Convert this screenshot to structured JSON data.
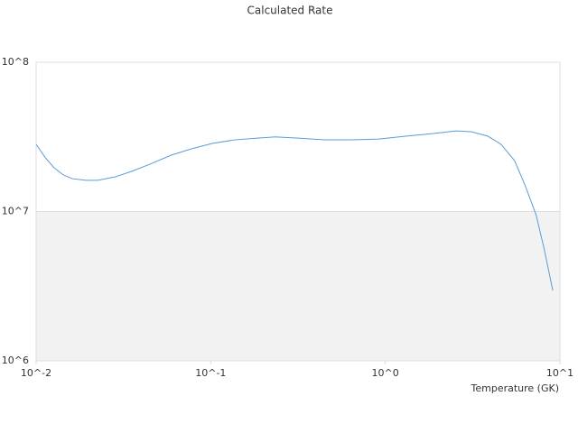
{
  "chart_data": {
    "type": "line",
    "title": "Calculated Rate",
    "x_label": "Temperature (GK)",
    "x": [
      0.01,
      0.0113,
      0.0127,
      0.0143,
      0.0161,
      0.0193,
      0.0225,
      0.0285,
      0.0362,
      0.0459,
      0.0596,
      0.0775,
      0.102,
      0.137,
      0.185,
      0.234,
      0.316,
      0.45,
      0.65,
      0.92,
      1.32,
      1.89,
      2.54,
      3.12,
      3.86,
      4.6,
      5.5,
      6.3,
      7.3,
      8.1,
      9.1
    ],
    "series": [
      {
        "color": "#5b9bd5",
        "values": [
          28200000,
          22900000,
          19600000,
          17600000,
          16600000,
          16200000,
          16200000,
          17100000,
          18800000,
          21000000,
          23900000,
          26300000,
          28600000,
          30200000,
          31000000,
          31600000,
          31000000,
          30200000,
          30200000,
          30600000,
          32000000,
          33300000,
          34700000,
          34200000,
          32000000,
          28200000,
          21900000,
          15100000,
          9500000,
          5700000,
          2960000
        ]
      }
    ],
    "xlim": [
      0.01,
      10
    ],
    "ylim": [
      1000000,
      100000000
    ],
    "xlog": true,
    "ylog": true,
    "xticks": [
      {
        "value": 0.01,
        "label": "10^-2"
      },
      {
        "value": 0.1,
        "label": "10^-1"
      },
      {
        "value": 1,
        "label": "10^0"
      },
      {
        "value": 10,
        "label": "10^1"
      }
    ],
    "yticks": [
      {
        "value": 1000000,
        "label": "10^6"
      },
      {
        "value": 10000000,
        "label": "10^7"
      },
      {
        "value": 100000000,
        "label": "10^8"
      }
    ],
    "grid": true,
    "band_color": "#f2f2f2"
  }
}
